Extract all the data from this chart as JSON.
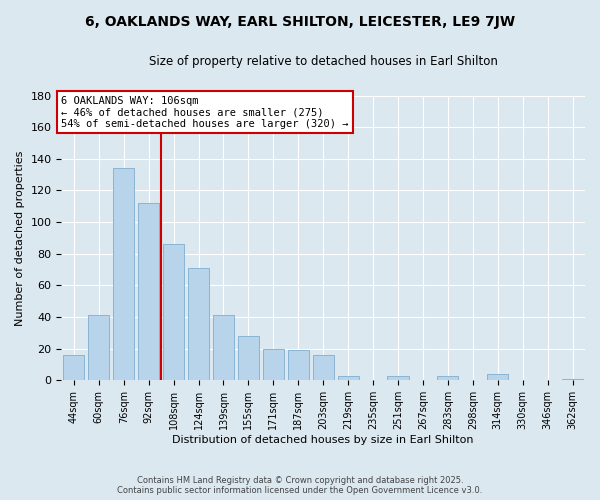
{
  "title": "6, OAKLANDS WAY, EARL SHILTON, LEICESTER, LE9 7JW",
  "subtitle": "Size of property relative to detached houses in Earl Shilton",
  "xlabel": "Distribution of detached houses by size in Earl Shilton",
  "ylabel": "Number of detached properties",
  "bar_labels": [
    "44sqm",
    "60sqm",
    "76sqm",
    "92sqm",
    "108sqm",
    "124sqm",
    "139sqm",
    "155sqm",
    "171sqm",
    "187sqm",
    "203sqm",
    "219sqm",
    "235sqm",
    "251sqm",
    "267sqm",
    "283sqm",
    "298sqm",
    "314sqm",
    "330sqm",
    "346sqm",
    "362sqm"
  ],
  "bar_values": [
    16,
    41,
    134,
    112,
    86,
    71,
    41,
    28,
    20,
    19,
    16,
    3,
    0,
    3,
    0,
    3,
    0,
    4,
    0,
    0,
    1
  ],
  "bar_color": "#b8d4ea",
  "bar_edge_color": "#8ab4d4",
  "ref_line_label": "6 OAKLANDS WAY: 106sqm",
  "annotation_line1": "← 46% of detached houses are smaller (275)",
  "annotation_line2": "54% of semi-detached houses are larger (320) →",
  "ylim": [
    0,
    180
  ],
  "yticks": [
    0,
    20,
    40,
    60,
    80,
    100,
    120,
    140,
    160,
    180
  ],
  "annotation_box_color": "#ffffff",
  "annotation_box_edge": "#cc0000",
  "ref_line_color": "#cc0000",
  "background_color": "#dce8f0",
  "footer_line1": "Contains HM Land Registry data © Crown copyright and database right 2025.",
  "footer_line2": "Contains public sector information licensed under the Open Government Licence v3.0."
}
